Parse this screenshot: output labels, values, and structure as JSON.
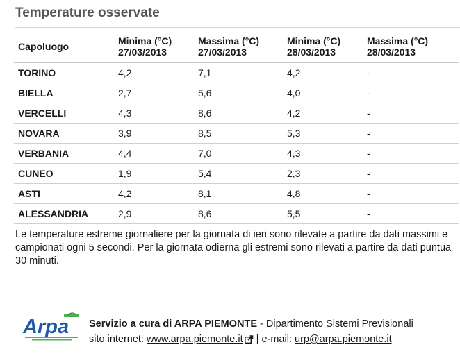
{
  "section": {
    "title": "Temperature osservate"
  },
  "table": {
    "headers": [
      {
        "line1": "Capoluogo",
        "line2": ""
      },
      {
        "line1": "Minima (°C)",
        "line2": "27/03/2013"
      },
      {
        "line1": "Massima (°C)",
        "line2": "27/03/2013"
      },
      {
        "line1": "Minima (°C)",
        "line2": "28/03/2013"
      },
      {
        "line1": "Massima (°C)",
        "line2": "28/03/2013"
      }
    ],
    "rows": [
      [
        "TORINO",
        "4,2",
        "7,1",
        "4,2",
        "-"
      ],
      [
        "BIELLA",
        "2,7",
        "5,6",
        "4,0",
        "-"
      ],
      [
        "VERCELLI",
        "4,3",
        "8,6",
        "4,2",
        "-"
      ],
      [
        "NOVARA",
        "3,9",
        "8,5",
        "5,3",
        "-"
      ],
      [
        "VERBANIA",
        "4,4",
        "7,0",
        "4,3",
        "-"
      ],
      [
        "CUNEO",
        "1,9",
        "5,4",
        "2,3",
        "-"
      ],
      [
        "ASTI",
        "4,2",
        "8,1",
        "4,8",
        "-"
      ],
      [
        "ALESSANDRIA",
        "2,9",
        "8,6",
        "5,5",
        "-"
      ]
    ]
  },
  "note": {
    "lines": [
      "Le temperature estreme giornaliere per la giornata di ieri sono rilevate a partire da dati massimi e",
      "campionati ogni 5 secondi. Per la giornata odierna gli estremi sono rilevati a partire da dati puntua",
      "30 minuti."
    ]
  },
  "footer": {
    "logo_text": "Arpa",
    "logo_icon": "arpa-piemonte-logo",
    "service_bold": "Servizio a cura di ARPA PIEMONTE",
    "service_rest": " - Dipartimento Sistemi Previsionali",
    "site_label": "sito internet: ",
    "site_link": "www.arpa.piemonte.it",
    "external_icon": "external-link-icon",
    "email_sep": " | e-mail: ",
    "email_link": "urp@arpa.piemonte.it"
  },
  "colors": {
    "title": "#555555",
    "logo_blue": "#1f5aa6",
    "logo_green": "#4caf50"
  }
}
